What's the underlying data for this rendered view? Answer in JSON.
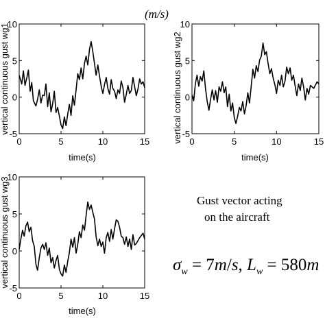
{
  "chart_data": [
    {
      "type": "line",
      "ylabel": "vertical continuous gust wg1",
      "xlabel": "time(s)",
      "xlim": [
        0,
        15
      ],
      "ylim": [
        -5,
        10
      ],
      "xticks": [
        0,
        5,
        10,
        15
      ],
      "yticks": [
        -5,
        0,
        5,
        10
      ],
      "grid": false,
      "x": [
        0,
        0.3,
        0.5,
        0.7,
        0.9,
        1.1,
        1.3,
        1.5,
        1.7,
        2.0,
        2.2,
        2.4,
        2.6,
        2.8,
        3.0,
        3.2,
        3.4,
        3.6,
        3.8,
        4.0,
        4.2,
        4.4,
        4.6,
        4.8,
        5.0,
        5.2,
        5.4,
        5.6,
        5.8,
        6.0,
        6.2,
        6.4,
        6.6,
        6.8,
        7.0,
        7.2,
        7.4,
        7.6,
        7.8,
        8.0,
        8.2,
        8.4,
        8.6,
        8.8,
        9.0,
        9.2,
        9.4,
        9.6,
        9.8,
        10.0,
        10.2,
        10.4,
        10.6,
        10.8,
        11.0,
        11.2,
        11.4,
        11.6,
        11.8,
        12.0,
        12.2,
        12.4,
        12.6,
        12.8,
        13.0,
        13.2,
        13.4,
        13.6,
        13.8,
        14.0,
        14.2,
        14.4,
        14.6,
        14.8,
        15.0
      ],
      "y": [
        3.0,
        1.8,
        3.6,
        1.6,
        2.6,
        3.7,
        0.8,
        2.0,
        -0.5,
        -1.2,
        -0.3,
        1.0,
        -0.8,
        0.3,
        0.2,
        1.8,
        -1.3,
        0.6,
        -2.0,
        -0.9,
        0.8,
        -2.1,
        -1.4,
        -2.6,
        -3.8,
        -4.3,
        -2.7,
        -3.9,
        -2.3,
        -1.0,
        -2.5,
        0.2,
        -1.1,
        1.0,
        3.2,
        2.4,
        4.0,
        2.5,
        4.6,
        5.6,
        4.4,
        6.5,
        7.6,
        6.2,
        4.6,
        3.0,
        4.4,
        2.9,
        1.5,
        0.5,
        1.7,
        2.7,
        1.2,
        0.4,
        2.4,
        1.2,
        0.8,
        -0.2,
        1.0,
        0.5,
        2.2,
        1.3,
        -0.7,
        0.4,
        1.6,
        0.5,
        0.9,
        2.7,
        1.4,
        0.2,
        1.1,
        2.5,
        1.8,
        2.1,
        1.3
      ]
    },
    {
      "type": "line",
      "ylabel": "vertical continuous gust wg2",
      "xlabel": "time(s)",
      "xlim": [
        0,
        15
      ],
      "ylim": [
        -5,
        10
      ],
      "xticks": [
        0,
        5,
        10,
        15
      ],
      "yticks": [
        -5,
        0,
        5,
        10
      ],
      "grid": false,
      "x": [
        0,
        0.2,
        0.4,
        0.6,
        0.8,
        1.0,
        1.2,
        1.4,
        1.6,
        1.8,
        2.0,
        2.2,
        2.4,
        2.6,
        2.8,
        3.0,
        3.2,
        3.4,
        3.6,
        3.8,
        4.0,
        4.2,
        4.4,
        4.6,
        4.8,
        5.0,
        5.2,
        5.4,
        5.6,
        5.8,
        6.0,
        6.2,
        6.4,
        6.6,
        6.8,
        7.0,
        7.2,
        7.4,
        7.6,
        7.8,
        8.0,
        8.2,
        8.4,
        8.6,
        8.8,
        9.0,
        9.2,
        9.4,
        9.6,
        9.8,
        10.0,
        10.2,
        10.4,
        10.6,
        10.8,
        11.0,
        11.2,
        11.4,
        11.6,
        11.8,
        12.0,
        12.2,
        12.4,
        12.6,
        12.8,
        13.0,
        13.2,
        13.4,
        13.6,
        13.8,
        14.0,
        14.4,
        14.8,
        15.0
      ],
      "y": [
        0.3,
        -0.5,
        1.8,
        3.0,
        1.5,
        2.8,
        2.2,
        3.6,
        1.2,
        -0.6,
        -1.8,
        -0.3,
        1.0,
        -0.4,
        0.9,
        -0.7,
        1.4,
        0.8,
        2.1,
        0.6,
        1.4,
        -1.3,
        0.4,
        -1.9,
        -0.8,
        -2.8,
        -3.6,
        -2.6,
        -1.4,
        -1.9,
        -0.6,
        -2.3,
        -1.2,
        0.6,
        -0.8,
        1.4,
        3.8,
        2.6,
        4.3,
        3.5,
        5.1,
        5.6,
        7.4,
        5.8,
        6.2,
        4.6,
        3.2,
        3.9,
        2.6,
        1.7,
        0.5,
        2.3,
        1.6,
        3.0,
        1.4,
        2.2,
        4.1,
        3.2,
        4.0,
        2.3,
        3.0,
        1.5,
        0.2,
        1.8,
        0.9,
        2.6,
        1.4,
        -0.4,
        1.2,
        0.4,
        1.6,
        1.2,
        2.1,
        1.8
      ]
    },
    {
      "type": "line",
      "ylabel": "vertical continuous gust wg3",
      "xlabel": "time(s)",
      "xlim": [
        0,
        15
      ],
      "ylim": [
        -5,
        10
      ],
      "xticks": [
        0,
        5,
        10,
        15
      ],
      "yticks": [
        -5,
        0,
        5,
        10
      ],
      "grid": false,
      "x": [
        0,
        0.2,
        0.4,
        0.6,
        0.8,
        1.0,
        1.2,
        1.4,
        1.6,
        1.8,
        2.0,
        2.2,
        2.4,
        2.6,
        2.8,
        3.0,
        3.2,
        3.4,
        3.6,
        3.8,
        4.0,
        4.2,
        4.4,
        4.6,
        4.8,
        5.0,
        5.2,
        5.4,
        5.6,
        5.8,
        6.0,
        6.2,
        6.4,
        6.6,
        6.8,
        7.0,
        7.2,
        7.4,
        7.6,
        7.8,
        8.0,
        8.2,
        8.4,
        8.6,
        8.8,
        9.0,
        9.2,
        9.4,
        9.6,
        9.8,
        10.0,
        10.2,
        10.4,
        10.6,
        10.8,
        11.0,
        11.2,
        11.4,
        11.6,
        11.8,
        12.0,
        12.2,
        12.4,
        12.6,
        12.8,
        13.0,
        13.2,
        13.4,
        13.6,
        13.8,
        14.0,
        14.4,
        14.8,
        15.0
      ],
      "y": [
        0.2,
        1.6,
        2.8,
        2.0,
        3.4,
        3.9,
        2.6,
        3.2,
        1.4,
        0.6,
        -1.8,
        -2.6,
        -0.9,
        0.4,
        0.9,
        0.2,
        1.1,
        -0.6,
        0.4,
        -1.6,
        -0.9,
        -2.3,
        -1.3,
        -0.6,
        -2.5,
        -3.1,
        -3.4,
        -1.9,
        -2.9,
        -1.4,
        -0.2,
        1.6,
        0.5,
        1.8,
        -0.3,
        0.9,
        2.6,
        1.8,
        3.5,
        2.8,
        4.8,
        6.6,
        5.6,
        6.2,
        5.2,
        4.3,
        1.9,
        0.7,
        1.6,
        0.6,
        1.2,
        -0.3,
        1.8,
        2.5,
        1.3,
        2.9,
        1.6,
        3.0,
        4.2,
        4.0,
        3.2,
        2.0,
        1.8,
        0.9,
        1.9,
        0.6,
        1.6,
        0.2,
        2.2,
        0.8,
        1.0,
        1.8,
        2.4,
        1.6
      ]
    }
  ],
  "unit_label": "(m/s)",
  "note": {
    "line1": "Gust vector acting",
    "line2": "on the aircraft"
  },
  "formula": "σ_w = 7m/s, L_w = 580m"
}
